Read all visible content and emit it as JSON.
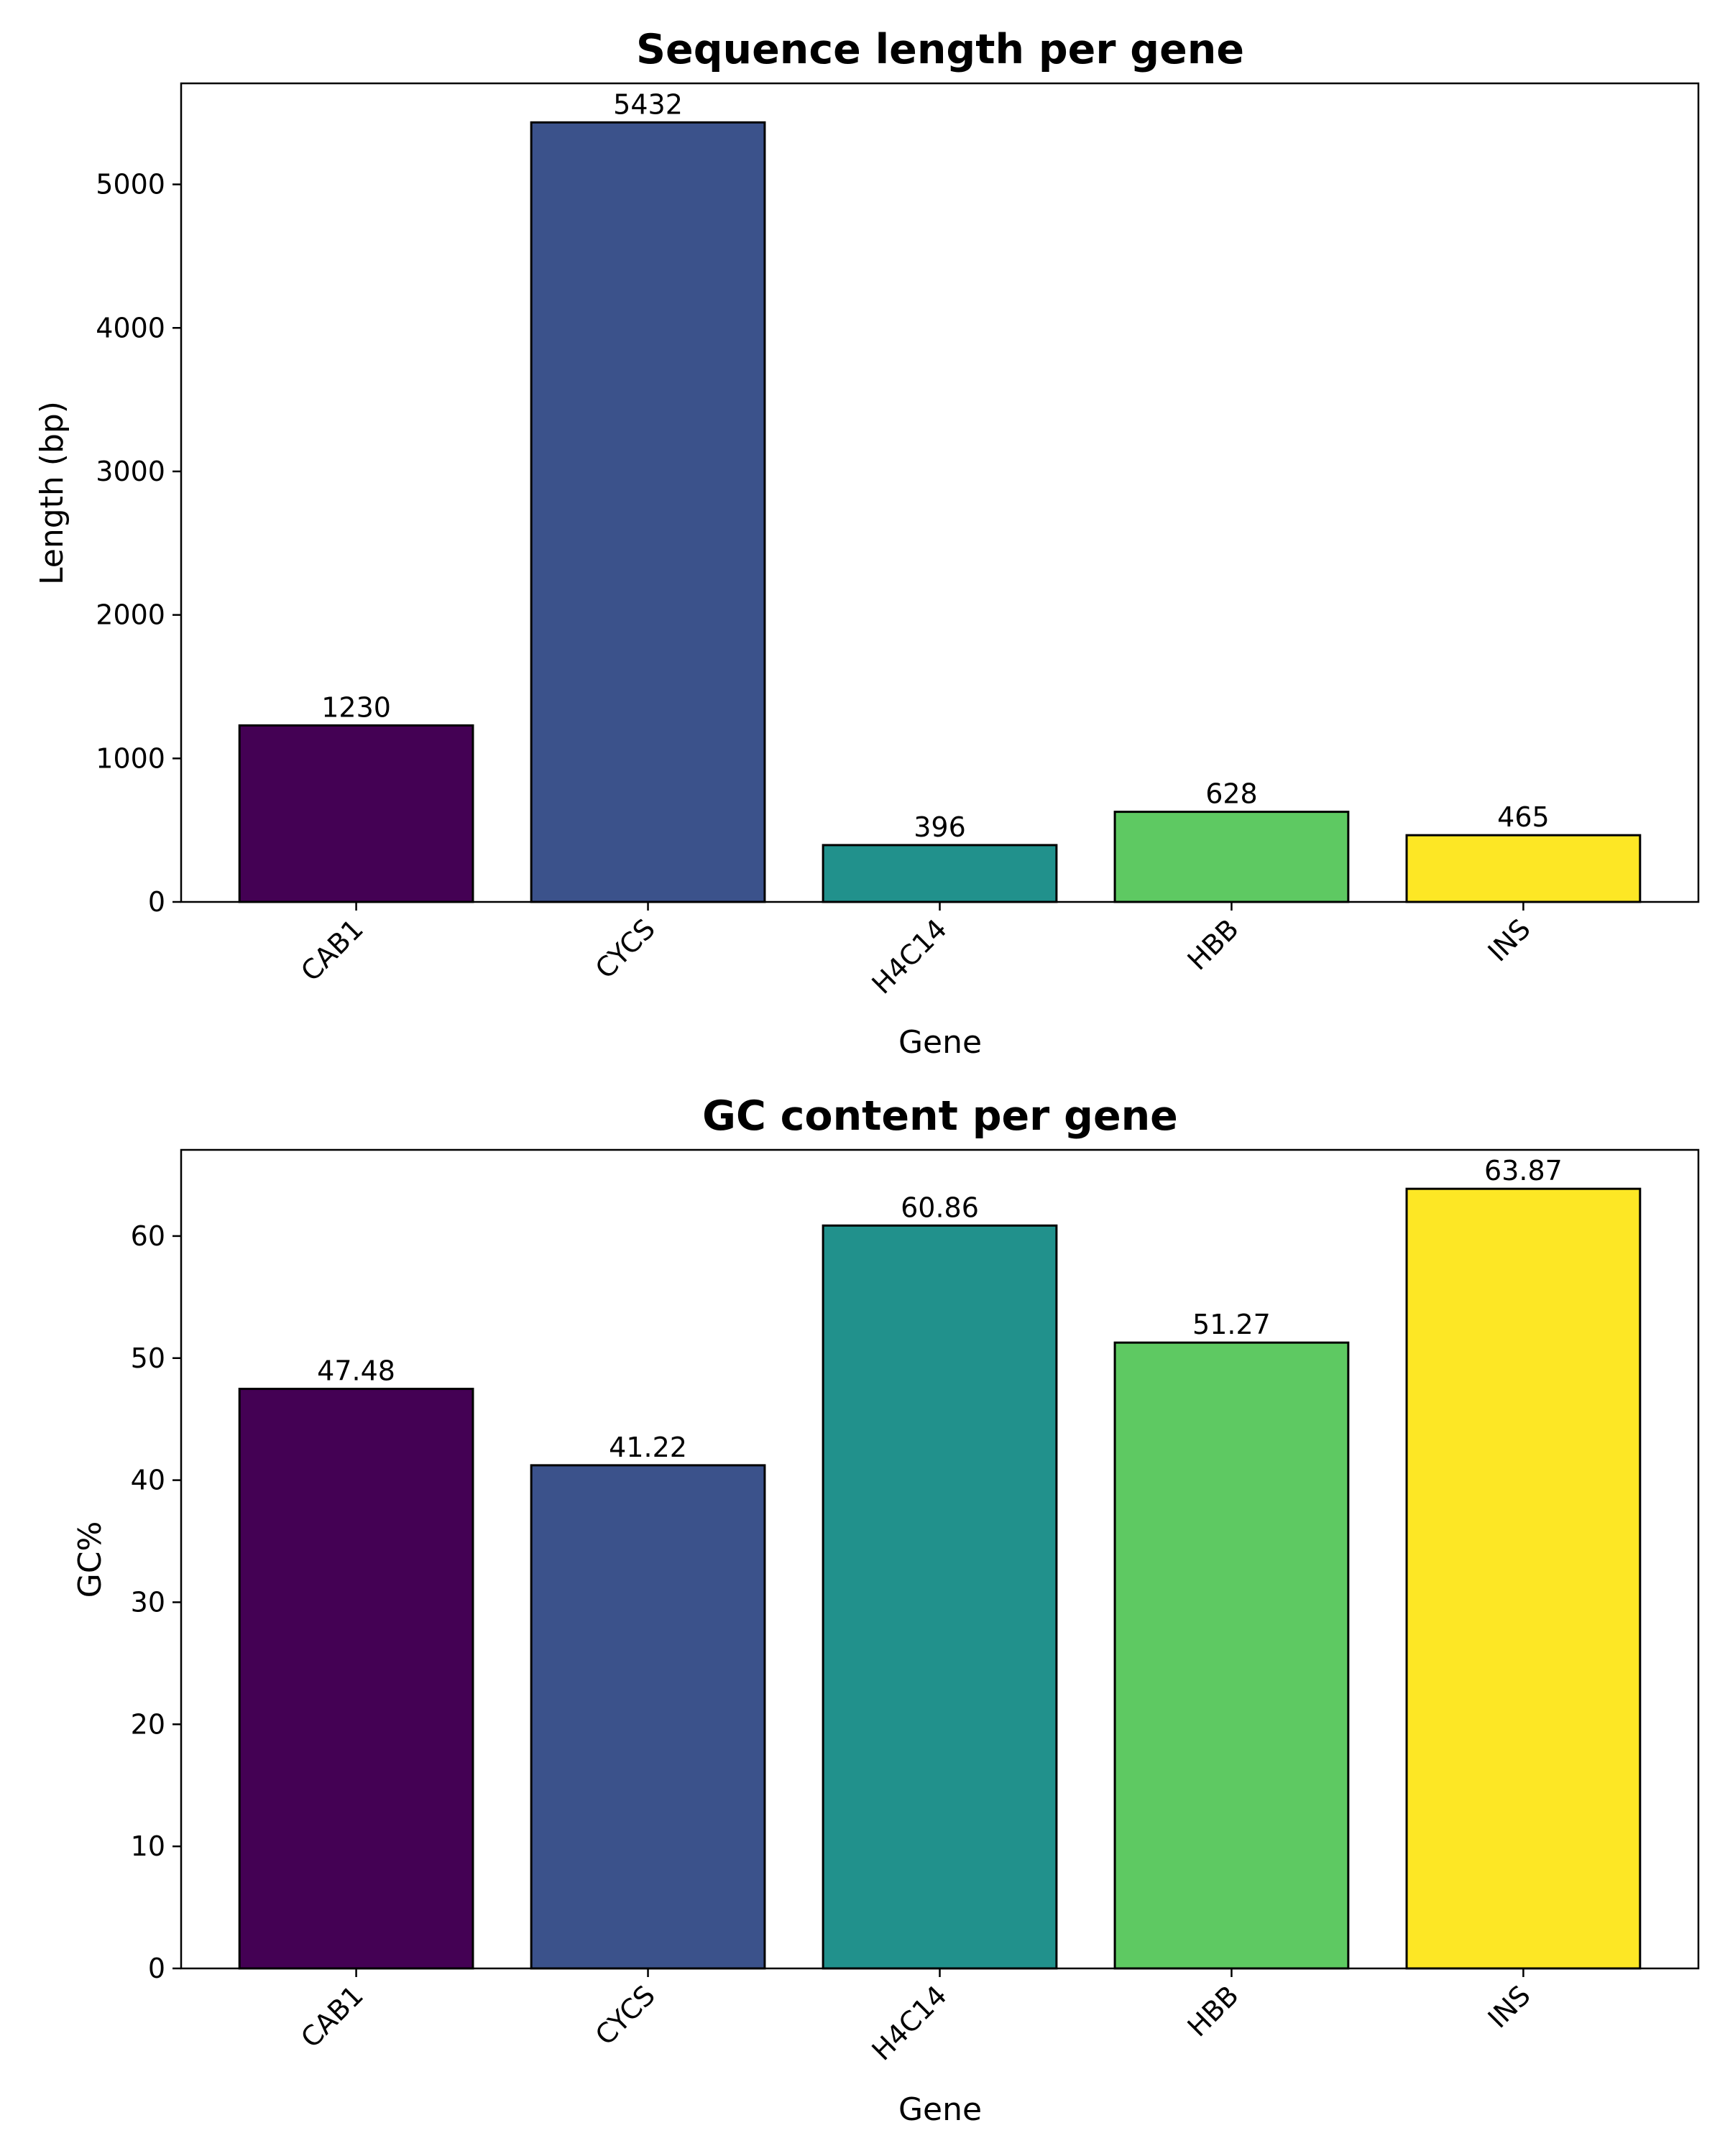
{
  "chart_data": [
    {
      "type": "bar",
      "title": "Sequence length per gene",
      "xlabel": "Gene",
      "ylabel": "Length (bp)",
      "categories": [
        "CAB1",
        "CYCS",
        "H4C14",
        "HBB",
        "INS"
      ],
      "values": [
        1230,
        5432,
        396,
        628,
        465
      ],
      "value_labels": [
        "1230",
        "5432",
        "396",
        "628",
        "465"
      ],
      "colors": [
        "#440154",
        "#3b528b",
        "#21918c",
        "#5ec962",
        "#fde725"
      ],
      "ylim": [
        0,
        5704
      ],
      "yticks": [
        0,
        1000,
        2000,
        3000,
        4000,
        5000
      ],
      "ytick_labels": [
        "0",
        "1000",
        "2000",
        "3000",
        "4000",
        "5000"
      ],
      "grid": false,
      "legend": "none"
    },
    {
      "type": "bar",
      "title": "GC content per gene",
      "xlabel": "Gene",
      "ylabel": "GC%",
      "categories": [
        "CAB1",
        "CYCS",
        "H4C14",
        "HBB",
        "INS"
      ],
      "values": [
        47.48,
        41.22,
        60.86,
        51.27,
        63.87
      ],
      "value_labels": [
        "47.48",
        "41.22",
        "60.86",
        "51.27",
        "63.87"
      ],
      "colors": [
        "#440154",
        "#3b528b",
        "#21918c",
        "#5ec962",
        "#fde725"
      ],
      "ylim": [
        0,
        67.06
      ],
      "yticks": [
        0,
        10,
        20,
        30,
        40,
        50,
        60
      ],
      "ytick_labels": [
        "0",
        "10",
        "20",
        "30",
        "40",
        "50",
        "60"
      ],
      "grid": false,
      "legend": "none"
    }
  ]
}
